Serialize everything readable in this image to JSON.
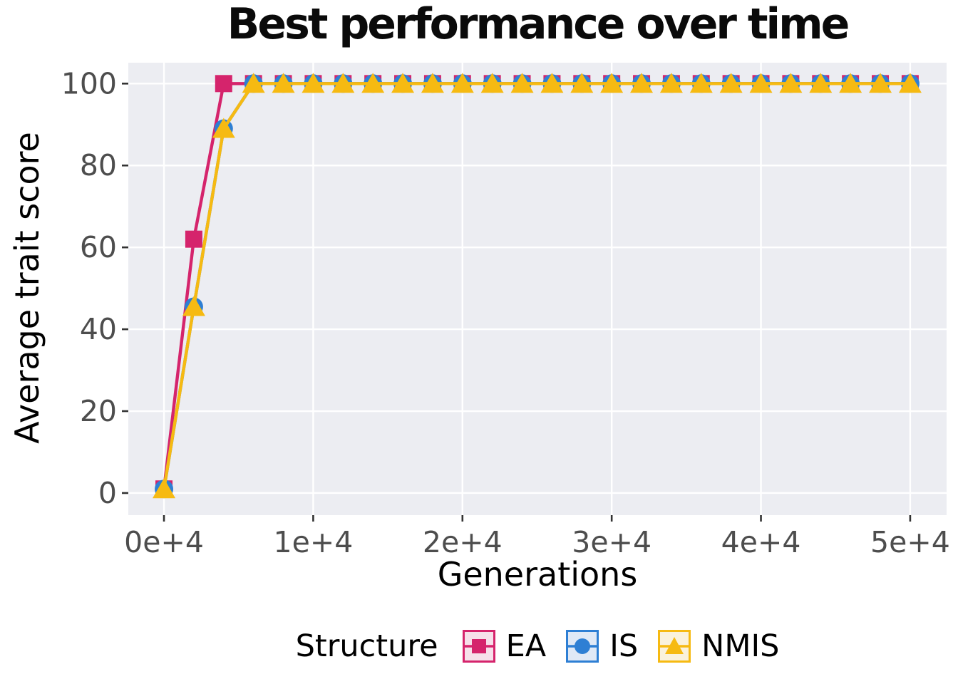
{
  "chart_data": {
    "type": "line",
    "title": "Best performance over time",
    "xlabel": "Generations",
    "ylabel": "Average trait score",
    "legend_title": "Structure",
    "legend_position": "bottom",
    "grid": "major-only",
    "x_ticks": {
      "values": [
        0,
        10000,
        20000,
        30000,
        40000,
        50000
      ],
      "labels": [
        "0e+4",
        "1e+4",
        "2e+4",
        "3e+4",
        "4e+4",
        "5e+4"
      ]
    },
    "y_ticks": {
      "values": [
        0,
        20,
        40,
        60,
        80,
        100
      ],
      "labels": [
        "0",
        "20",
        "40",
        "60",
        "80",
        "100"
      ]
    },
    "xlim": [
      -2390,
      52440
    ],
    "ylim": [
      -5.4,
      105.1
    ],
    "x": [
      0,
      2000,
      4000,
      6000,
      8000,
      10000,
      12000,
      14000,
      16000,
      18000,
      20000,
      22000,
      24000,
      26000,
      28000,
      30000,
      32000,
      34000,
      36000,
      38000,
      40000,
      42000,
      44000,
      46000,
      48000,
      50000
    ],
    "series": [
      {
        "name": "EA",
        "marker": "square",
        "color": "#D5246C",
        "key_fill": "#F6E0EA",
        "values": [
          1,
          62,
          100,
          100,
          100,
          100,
          100,
          100,
          100,
          100,
          100,
          100,
          100,
          100,
          100,
          100,
          100,
          100,
          100,
          100,
          100,
          100,
          100,
          100,
          100,
          100
        ]
      },
      {
        "name": "IS",
        "marker": "circle",
        "color": "#2E7FD4",
        "key_fill": "#E0E9F6",
        "values": [
          1,
          45.5,
          89,
          100,
          100,
          100,
          100,
          100,
          100,
          100,
          100,
          100,
          100,
          100,
          100,
          100,
          100,
          100,
          100,
          100,
          100,
          100,
          100,
          100,
          100,
          100
        ]
      },
      {
        "name": "NMIS",
        "marker": "triangle",
        "color": "#F6BA12",
        "key_fill": "#FAF2DC",
        "values": [
          1,
          45.5,
          89,
          100,
          100,
          100,
          100,
          100,
          100,
          100,
          100,
          100,
          100,
          100,
          100,
          100,
          100,
          100,
          100,
          100,
          100,
          100,
          100,
          100,
          100,
          100
        ]
      }
    ],
    "colors": {
      "panel_bg": "#ECEDF2",
      "grid": "#FFFFFF",
      "tick_mark": "#333333",
      "tick_label": "#4D4D4D"
    }
  }
}
